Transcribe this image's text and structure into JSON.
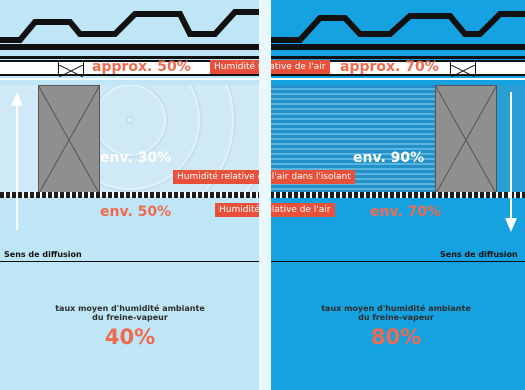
{
  "labels": {
    "humidite_air_top": "Humidité relative de l'air",
    "humidite_isolant": "Humidité relative de l'air dans l'isolant",
    "humidite_air_bottom": "Humidité relative de l'air"
  },
  "left": {
    "top_pct": "approx. 50%",
    "mid_pct": "env. 30%",
    "bottom_pct": "env. 50%",
    "diffusion": "Sens de diffusion",
    "avg_line1": "taux moyen d'humidité ambiante",
    "avg_line2": "du freine-vapeur",
    "avg_value": "40%"
  },
  "right": {
    "top_pct": "approx. 70%",
    "mid_pct": "env. 90%",
    "bottom_pct": "env. 70%",
    "diffusion": "Sens de diffusion",
    "avg_line1": "taux moyen d'humidité ambiante",
    "avg_line2": "du freine-vapeur",
    "avg_value": "80%"
  },
  "colors": {
    "accent": "#e8503a",
    "left_bg": "#bfe6f6",
    "right_bg": "#16a2e0"
  }
}
